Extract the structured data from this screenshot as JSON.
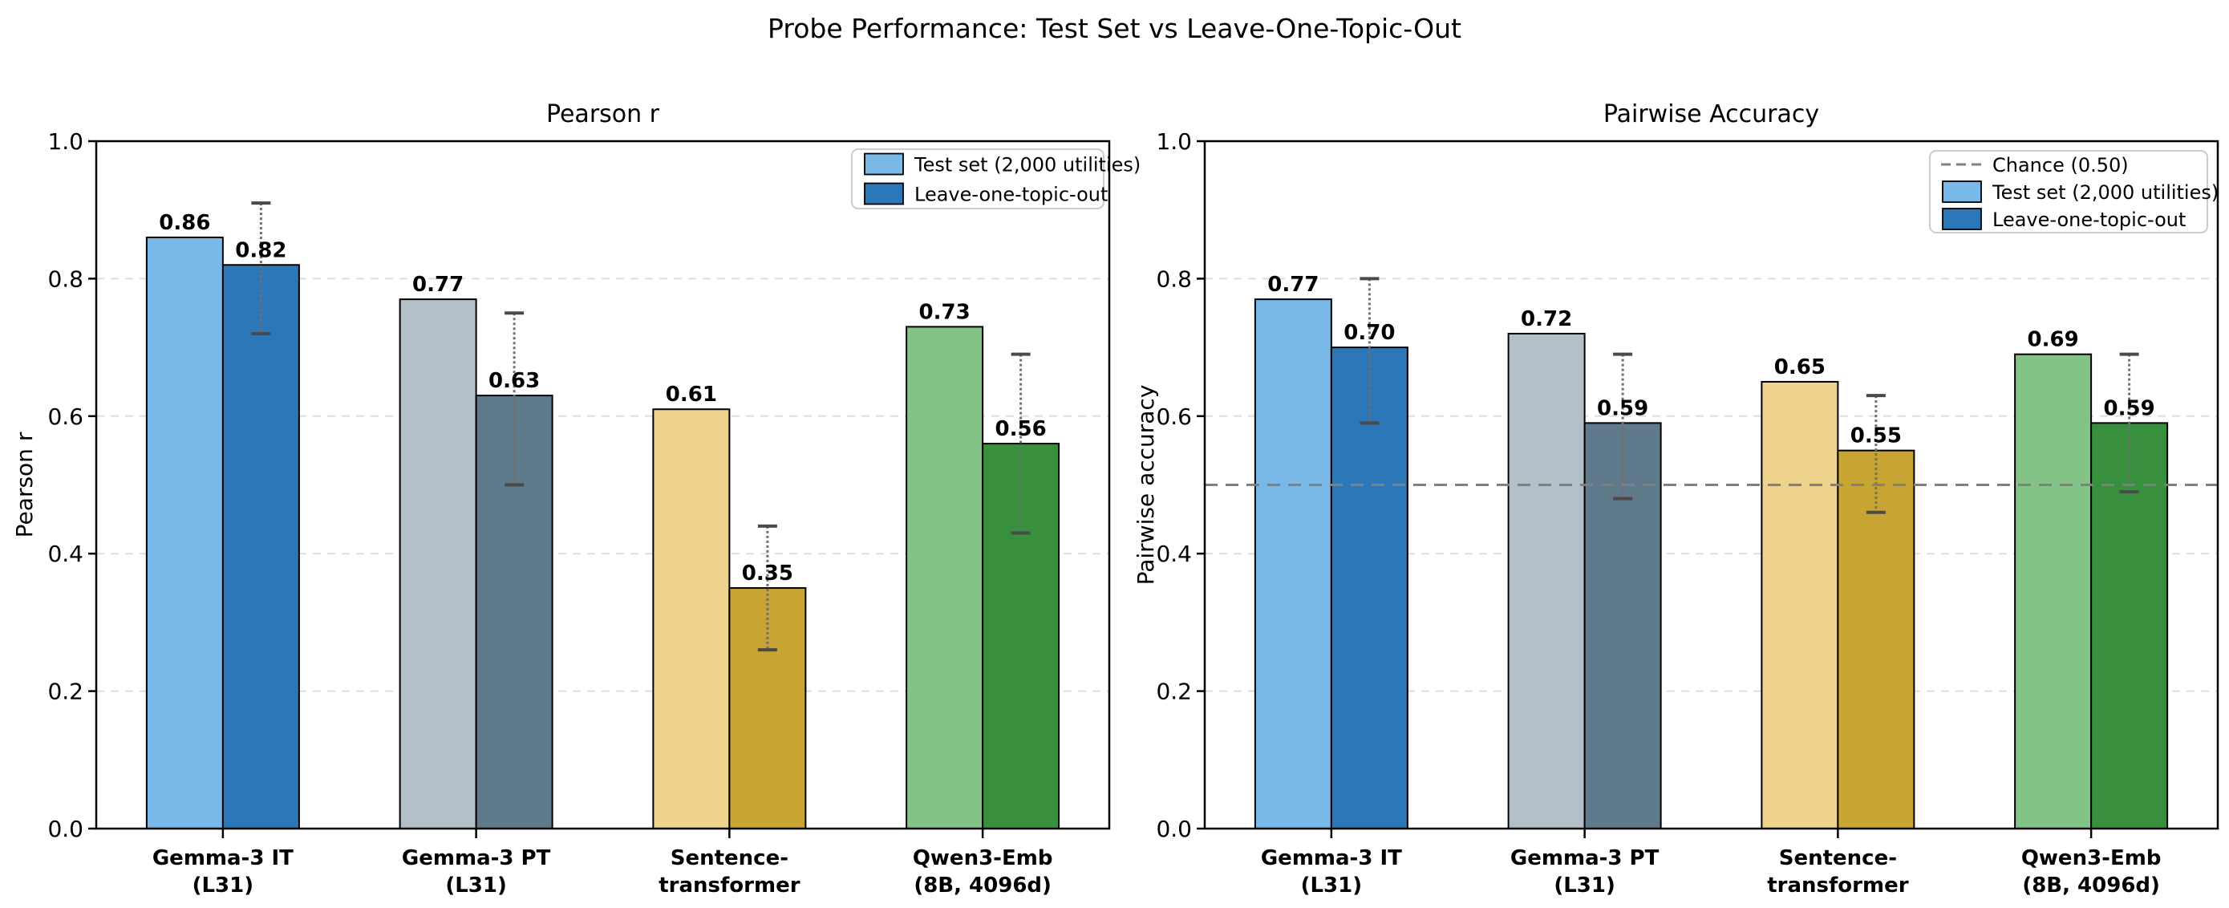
{
  "suptitle": "Probe Performance: Test Set vs Leave-One-Topic-Out",
  "palette": {
    "test_colors": [
      "#7ab8e8",
      "#b4c0c8",
      "#efd38d",
      "#84c386"
    ],
    "loto_colors": [
      "#2c77b8",
      "#5f7a8a",
      "#c8a433",
      "#38903f"
    ],
    "bar_edge": "#000000",
    "grid": "#dedede",
    "error_line": "#6f6f6f",
    "error_cap": "#4a4a4a",
    "chance_line": "#808080",
    "legend_border": "#cccccc",
    "legend_bg": "#ffffff"
  },
  "categories": [
    {
      "label": "Gemma-3 IT (L31)",
      "lines": [
        "Gemma-3 IT",
        "(L31)"
      ]
    },
    {
      "label": "Gemma-3 PT (L31)",
      "lines": [
        "Gemma-3 PT",
        "(L31)"
      ]
    },
    {
      "label": "Sentence-transformer",
      "lines": [
        "Sentence-",
        "transformer"
      ]
    },
    {
      "label": "Qwen3-Emb (8B, 4096d)",
      "lines": [
        "Qwen3-Emb",
        "(8B, 4096d)"
      ]
    }
  ],
  "chart_data": [
    {
      "type": "bar",
      "title": "Pearson r",
      "ylabel": "Pearson r",
      "ylim": [
        0.0,
        1.0
      ],
      "yticks": [
        0.0,
        0.2,
        0.4,
        0.6,
        0.8,
        1.0
      ],
      "grid": "horizontal-dashed",
      "legend_position": "upper right",
      "categories": [
        "Gemma-3 IT (L31)",
        "Gemma-3 PT (L31)",
        "Sentence-transformer",
        "Qwen3-Emb (8B, 4096d)"
      ],
      "series": [
        {
          "name": "Test set (2,000 utilities)",
          "values": [
            0.86,
            0.77,
            0.61,
            0.73
          ]
        },
        {
          "name": "Leave-one-topic-out",
          "values": [
            0.82,
            0.63,
            0.35,
            0.56
          ],
          "error_low": [
            0.72,
            0.5,
            0.26,
            0.43
          ],
          "error_high": [
            0.91,
            0.75,
            0.44,
            0.69
          ]
        }
      ]
    },
    {
      "type": "bar",
      "title": "Pairwise Accuracy",
      "ylabel": "Pairwise accuracy",
      "ylim": [
        0.0,
        1.0
      ],
      "yticks": [
        0.0,
        0.2,
        0.4,
        0.6,
        0.8,
        1.0
      ],
      "grid": "horizontal-dashed",
      "legend_position": "upper right",
      "reference_line": {
        "label": "Chance (0.50)",
        "value": 0.5
      },
      "categories": [
        "Gemma-3 IT (L31)",
        "Gemma-3 PT (L31)",
        "Sentence-transformer",
        "Qwen3-Emb (8B, 4096d)"
      ],
      "series": [
        {
          "name": "Test set (2,000 utilities)",
          "values": [
            0.77,
            0.72,
            0.65,
            0.69
          ]
        },
        {
          "name": "Leave-one-topic-out",
          "values": [
            0.7,
            0.59,
            0.55,
            0.59
          ],
          "error_low": [
            0.59,
            0.48,
            0.46,
            0.49
          ],
          "error_high": [
            0.8,
            0.69,
            0.63,
            0.69
          ]
        }
      ]
    }
  ]
}
